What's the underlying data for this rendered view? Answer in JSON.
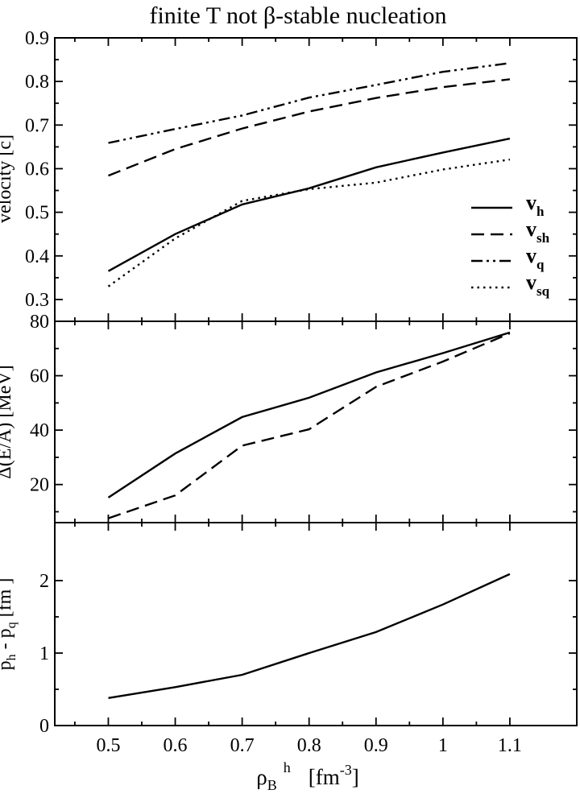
{
  "title": "finite T not β-stable nucleation",
  "xlabel": {
    "main": "ρ",
    "sub": "B",
    "sup": "h",
    "unit": "[fm",
    "unit_exp": "-3",
    "unit_close": "]"
  },
  "x_ticks": [
    "0.5",
    "0.6",
    "0.7",
    "0.8",
    "0.9",
    "1",
    "1.1"
  ],
  "chart_data": [
    {
      "type": "line",
      "ylabel": "velocity  [c]",
      "xlim": [
        0.42,
        1.2
      ],
      "ylim": [
        0.25,
        0.9
      ],
      "y_ticks": [
        "0.3",
        "0.4",
        "0.5",
        "0.6",
        "0.7",
        "0.8",
        "0.9"
      ],
      "legend": {
        "placement": "right"
      },
      "x": [
        0.5,
        0.6,
        0.7,
        0.8,
        0.9,
        1.0,
        1.1
      ],
      "series": [
        {
          "name": "v",
          "sub": "h",
          "style": "solid",
          "values": [
            0.365,
            0.45,
            0.518,
            0.555,
            0.603,
            0.637,
            0.669
          ]
        },
        {
          "name": "v",
          "sub": "sh",
          "style": "dashed",
          "values": [
            0.584,
            0.645,
            0.692,
            0.731,
            0.762,
            0.787,
            0.805
          ]
        },
        {
          "name": "v",
          "sub": "q",
          "style": "dashdotdot",
          "values": [
            0.659,
            0.691,
            0.722,
            0.763,
            0.792,
            0.822,
            0.842
          ]
        },
        {
          "name": "v",
          "sub": "sq",
          "style": "dotted",
          "values": [
            0.33,
            0.44,
            0.526,
            0.553,
            0.568,
            0.598,
            0.621
          ]
        }
      ]
    },
    {
      "type": "line",
      "ylabel": "Δ(E/A)  [MeV]",
      "xlim": [
        0.42,
        1.2
      ],
      "ylim": [
        6,
        80
      ],
      "y_ticks": [
        "20",
        "40",
        "60",
        "80"
      ],
      "x": [
        0.5,
        0.6,
        0.7,
        0.8,
        0.9,
        1.0,
        1.1
      ],
      "series": [
        {
          "style": "solid",
          "values": [
            15.2,
            31.4,
            44.8,
            51.9,
            61.2,
            68.3,
            75.9
          ]
        },
        {
          "style": "dashed",
          "values": [
            7.6,
            16.0,
            34.3,
            40.3,
            55.9,
            65.2,
            75.6
          ]
        }
      ]
    },
    {
      "type": "line",
      "ylabel": "p  - p   [fm  ]",
      "ylabel_parts": {
        "p1": "p",
        "s1": "h",
        "minus": " - ",
        "p2": "p",
        "s2": "q",
        "unit": "  [fm",
        "unit_close": "  ]"
      },
      "xlim": [
        0.42,
        1.2
      ],
      "ylim": [
        0,
        2.8
      ],
      "y_ticks": [
        "0",
        "1",
        "2"
      ],
      "x": [
        0.5,
        0.6,
        0.7,
        0.8,
        0.9,
        1.0,
        1.1
      ],
      "series": [
        {
          "style": "solid",
          "values": [
            0.38,
            0.53,
            0.7,
            1.0,
            1.29,
            1.67,
            2.09
          ]
        }
      ]
    }
  ]
}
